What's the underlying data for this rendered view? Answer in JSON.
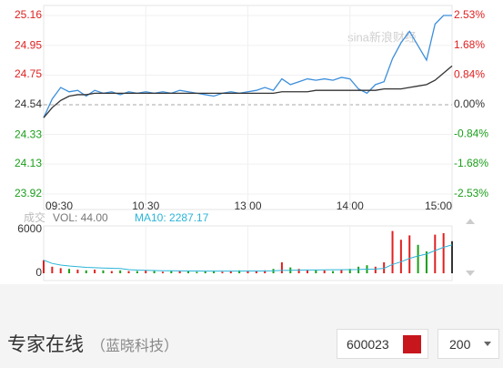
{
  "chart_data": [
    {
      "type": "line",
      "watermark": "sina新浪财经",
      "x": [
        0,
        5,
        10,
        15,
        20,
        25,
        30,
        35,
        40,
        45,
        50,
        55,
        60,
        65,
        70,
        75,
        80,
        85,
        90,
        95,
        100,
        105,
        110,
        115,
        120,
        125,
        130,
        135,
        140,
        145,
        150,
        155,
        160,
        165,
        170,
        175,
        180,
        185,
        190,
        195,
        200,
        205,
        210,
        215,
        220,
        225,
        230,
        235,
        240
      ],
      "series": [
        {
          "color": "#3d8fdc",
          "values": [
            24.45,
            24.58,
            24.66,
            24.63,
            24.64,
            24.6,
            24.64,
            24.62,
            24.63,
            24.61,
            24.63,
            24.62,
            24.63,
            24.62,
            24.63,
            24.62,
            24.64,
            24.63,
            24.62,
            24.61,
            24.6,
            24.62,
            24.63,
            24.62,
            24.63,
            24.64,
            24.66,
            24.64,
            24.72,
            24.68,
            24.7,
            24.72,
            24.71,
            24.72,
            24.71,
            24.73,
            24.72,
            24.65,
            24.62,
            24.68,
            24.7,
            24.86,
            24.97,
            25.05,
            24.95,
            24.85,
            25.1,
            25.16,
            25.16
          ]
        },
        {
          "color": "#333333",
          "values": [
            24.45,
            24.52,
            24.57,
            24.6,
            24.61,
            24.61,
            24.62,
            24.62,
            24.62,
            24.62,
            24.62,
            24.62,
            24.62,
            24.62,
            24.62,
            24.62,
            24.62,
            24.62,
            24.62,
            24.62,
            24.62,
            24.62,
            24.62,
            24.62,
            24.62,
            24.62,
            24.62,
            24.62,
            24.63,
            24.63,
            24.63,
            24.63,
            24.64,
            24.64,
            24.64,
            24.64,
            24.64,
            24.64,
            24.64,
            24.64,
            24.65,
            24.65,
            24.65,
            24.66,
            24.67,
            24.68,
            24.71,
            24.76,
            24.81
          ]
        }
      ],
      "xlim": [
        0,
        240
      ],
      "xticks": [
        {
          "value": 0,
          "label": "09:30"
        },
        {
          "value": 60,
          "label": "10:30"
        },
        {
          "value": 120,
          "label": "13:00"
        },
        {
          "value": 180,
          "label": "14:00"
        },
        {
          "value": 240,
          "label": "15:00"
        }
      ],
      "ylim": [
        23.92,
        25.16
      ],
      "yticks": [
        25.16,
        24.95,
        24.75,
        24.54,
        24.33,
        24.13,
        23.92
      ],
      "y2lim": [
        -2.53,
        2.53
      ],
      "y2ticks": [
        {
          "value": 2.53,
          "label": "2.53%"
        },
        {
          "value": 1.68,
          "label": "1.68%"
        },
        {
          "value": 0.84,
          "label": "0.84%"
        },
        {
          "value": 0,
          "label": "0.00%"
        },
        {
          "value": -0.84,
          "label": "-0.84%"
        },
        {
          "value": -1.68,
          "label": "-1.68%"
        },
        {
          "value": -2.53,
          "label": "-2.53%"
        }
      ],
      "up_color": "#e02020",
      "down_color": "#1a9e1a",
      "flat_color": "#333333",
      "grid": true
    },
    {
      "type": "bar",
      "label": "成交",
      "vol_label": "VOL: 44.00",
      "ma_label": "MA10: 2287.17",
      "values": [
        1800,
        900,
        700,
        600,
        500,
        400,
        500,
        400,
        300,
        400,
        300,
        300,
        400,
        300,
        200,
        300,
        300,
        300,
        200,
        300,
        300,
        200,
        300,
        400,
        300,
        300,
        400,
        600,
        1500,
        800,
        600,
        400,
        500,
        400,
        300,
        500,
        600,
        900,
        1100,
        900,
        1500,
        5800,
        4600,
        5200,
        3900,
        3000,
        5300,
        5500,
        4400
      ],
      "ma10": [
        1800,
        1350,
        1130,
        1000,
        900,
        820,
        770,
        720,
        680,
        650,
        500,
        440,
        410,
        380,
        350,
        340,
        330,
        320,
        310,
        300,
        290,
        290,
        290,
        300,
        310,
        310,
        320,
        340,
        390,
        400,
        430,
        450,
        460,
        470,
        480,
        490,
        500,
        510,
        560,
        580,
        670,
        1210,
        1570,
        2050,
        2380,
        2640,
        3110,
        3560,
        3910
      ],
      "ma_color": "#2bb5d8",
      "ylim": [
        0,
        6000
      ],
      "yticks": [
        6000,
        0
      ]
    }
  ],
  "controls": {
    "title": "专家在线",
    "subtitle": "（蓝晓科技）",
    "code": "600023",
    "size": "200"
  }
}
